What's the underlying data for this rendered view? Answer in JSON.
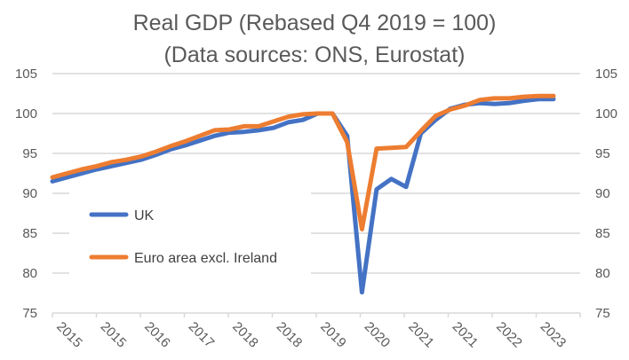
{
  "chart_data": {
    "type": "line",
    "title": "Real GDP (Rebased Q4 2019 = 100)",
    "subtitle": "(Data sources: ONS, Eurostat)",
    "xlabel": "",
    "ylabel": "",
    "ylim": [
      75,
      105
    ],
    "yticks": [
      75,
      80,
      85,
      90,
      95,
      100,
      105
    ],
    "secondary_yticks": [
      75,
      80,
      85,
      90,
      95,
      100,
      105
    ],
    "grid": true,
    "legend_position": "center-left (inside plot)",
    "x_tick_labels": [
      "2015",
      "2015",
      "2016",
      "2017",
      "2018",
      "2018",
      "2019",
      "2020",
      "2021",
      "2021",
      "2022",
      "2023"
    ],
    "x": [
      "2015 Q1",
      "2015 Q2",
      "2015 Q3",
      "2015 Q4",
      "2016 Q1",
      "2016 Q2",
      "2016 Q3",
      "2016 Q4",
      "2017 Q1",
      "2017 Q2",
      "2017 Q3",
      "2017 Q4",
      "2018 Q1",
      "2018 Q2",
      "2018 Q3",
      "2018 Q4",
      "2019 Q1",
      "2019 Q2",
      "2019 Q3",
      "2019 Q4",
      "2020 Q1",
      "2020 Q2",
      "2020 Q3",
      "2020 Q4",
      "2021 Q1",
      "2021 Q2",
      "2021 Q3",
      "2021 Q4",
      "2022 Q1",
      "2022 Q2",
      "2022 Q3",
      "2022 Q4",
      "2023 Q1",
      "2023 Q2",
      "2023 Q3"
    ],
    "series": [
      {
        "name": "UK",
        "color": "#4472C4",
        "values": [
          91.5,
          92.0,
          92.5,
          93.0,
          93.4,
          93.8,
          94.2,
          94.8,
          95.5,
          96.0,
          96.6,
          97.2,
          97.6,
          97.7,
          97.9,
          98.2,
          98.9,
          99.2,
          100.0,
          100.0,
          97.2,
          77.6,
          90.5,
          91.8,
          90.8,
          97.5,
          99.2,
          100.6,
          101.1,
          101.3,
          101.2,
          101.3,
          101.6,
          101.8,
          101.8
        ]
      },
      {
        "name": "Euro area excl. Ireland",
        "color": "#ED7D31",
        "values": [
          92.0,
          92.5,
          93.0,
          93.4,
          93.9,
          94.2,
          94.6,
          95.2,
          95.9,
          96.5,
          97.2,
          97.9,
          98.0,
          98.4,
          98.4,
          99.0,
          99.6,
          99.9,
          100.0,
          100.0,
          96.4,
          85.5,
          95.6,
          95.7,
          95.8,
          97.8,
          99.7,
          100.5,
          101.0,
          101.7,
          101.9,
          101.9,
          102.1,
          102.2,
          102.2
        ]
      }
    ]
  }
}
